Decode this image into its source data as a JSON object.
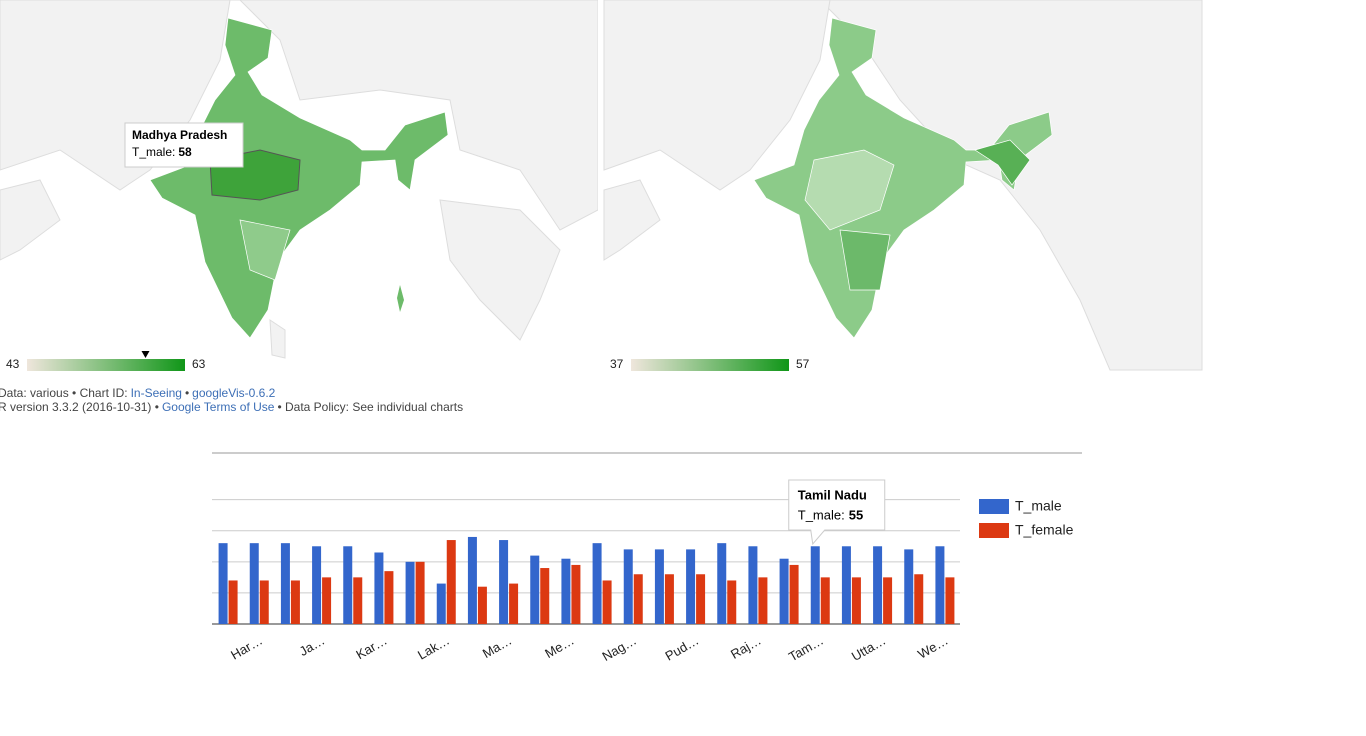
{
  "chart_data": [
    {
      "type": "geo",
      "color_axis": {
        "min": 43,
        "max": 63,
        "colors": [
          "#efe6dc",
          "#109618"
        ]
      },
      "tooltip": {
        "title": "Madhya Pradesh",
        "label": "T_male:",
        "value": 58
      }
    },
    {
      "type": "geo",
      "color_axis": {
        "min": 37,
        "max": 57,
        "colors": [
          "#efe6dc",
          "#109618"
        ]
      }
    },
    {
      "type": "bar",
      "categories": [
        null,
        "Har…",
        null,
        "Ja…",
        null,
        "Kar…",
        null,
        "Lak…",
        null,
        "Ma…",
        null,
        "Me…",
        null,
        "Nag…",
        null,
        "Pud…",
        null,
        "Raj…",
        null,
        "Tam…",
        null,
        "Utta…",
        null,
        "We…"
      ],
      "series": [
        {
          "name": "T_male",
          "color": "#3366cc",
          "values": [
            56,
            56,
            56,
            55,
            55,
            53,
            50,
            43,
            58,
            57,
            52,
            51,
            56,
            54,
            54,
            54,
            56,
            55,
            51,
            55,
            55,
            55,
            54,
            55
          ]
        },
        {
          "name": "T_female",
          "color": "#dc3912",
          "values": [
            44,
            44,
            44,
            45,
            45,
            47,
            50,
            57,
            42,
            43,
            48,
            49,
            44,
            46,
            46,
            46,
            44,
            45,
            49,
            45,
            45,
            45,
            46,
            45
          ]
        }
      ],
      "ylim": [
        30,
        85
      ],
      "yticks": [
        30,
        40,
        50,
        60,
        70
      ],
      "grid": true,
      "legend": "right",
      "tooltip": {
        "title": "Tamil Nadu",
        "label": "T_male:",
        "value": 55
      }
    }
  ],
  "footer": [
    [
      {
        "text": "Data: various • Chart ID:"
      },
      {
        "text": "In-Seeing",
        "link": true
      },
      {
        "text": "•"
      },
      {
        "text": "googleVis-0.6.2",
        "link": true
      }
    ],
    [
      {
        "text": "R version 3.3.2 (2016-10-31) •"
      },
      {
        "text": "Google Terms of Use",
        "link": true
      },
      {
        "text": "• Data Policy: See individual charts"
      }
    ]
  ]
}
